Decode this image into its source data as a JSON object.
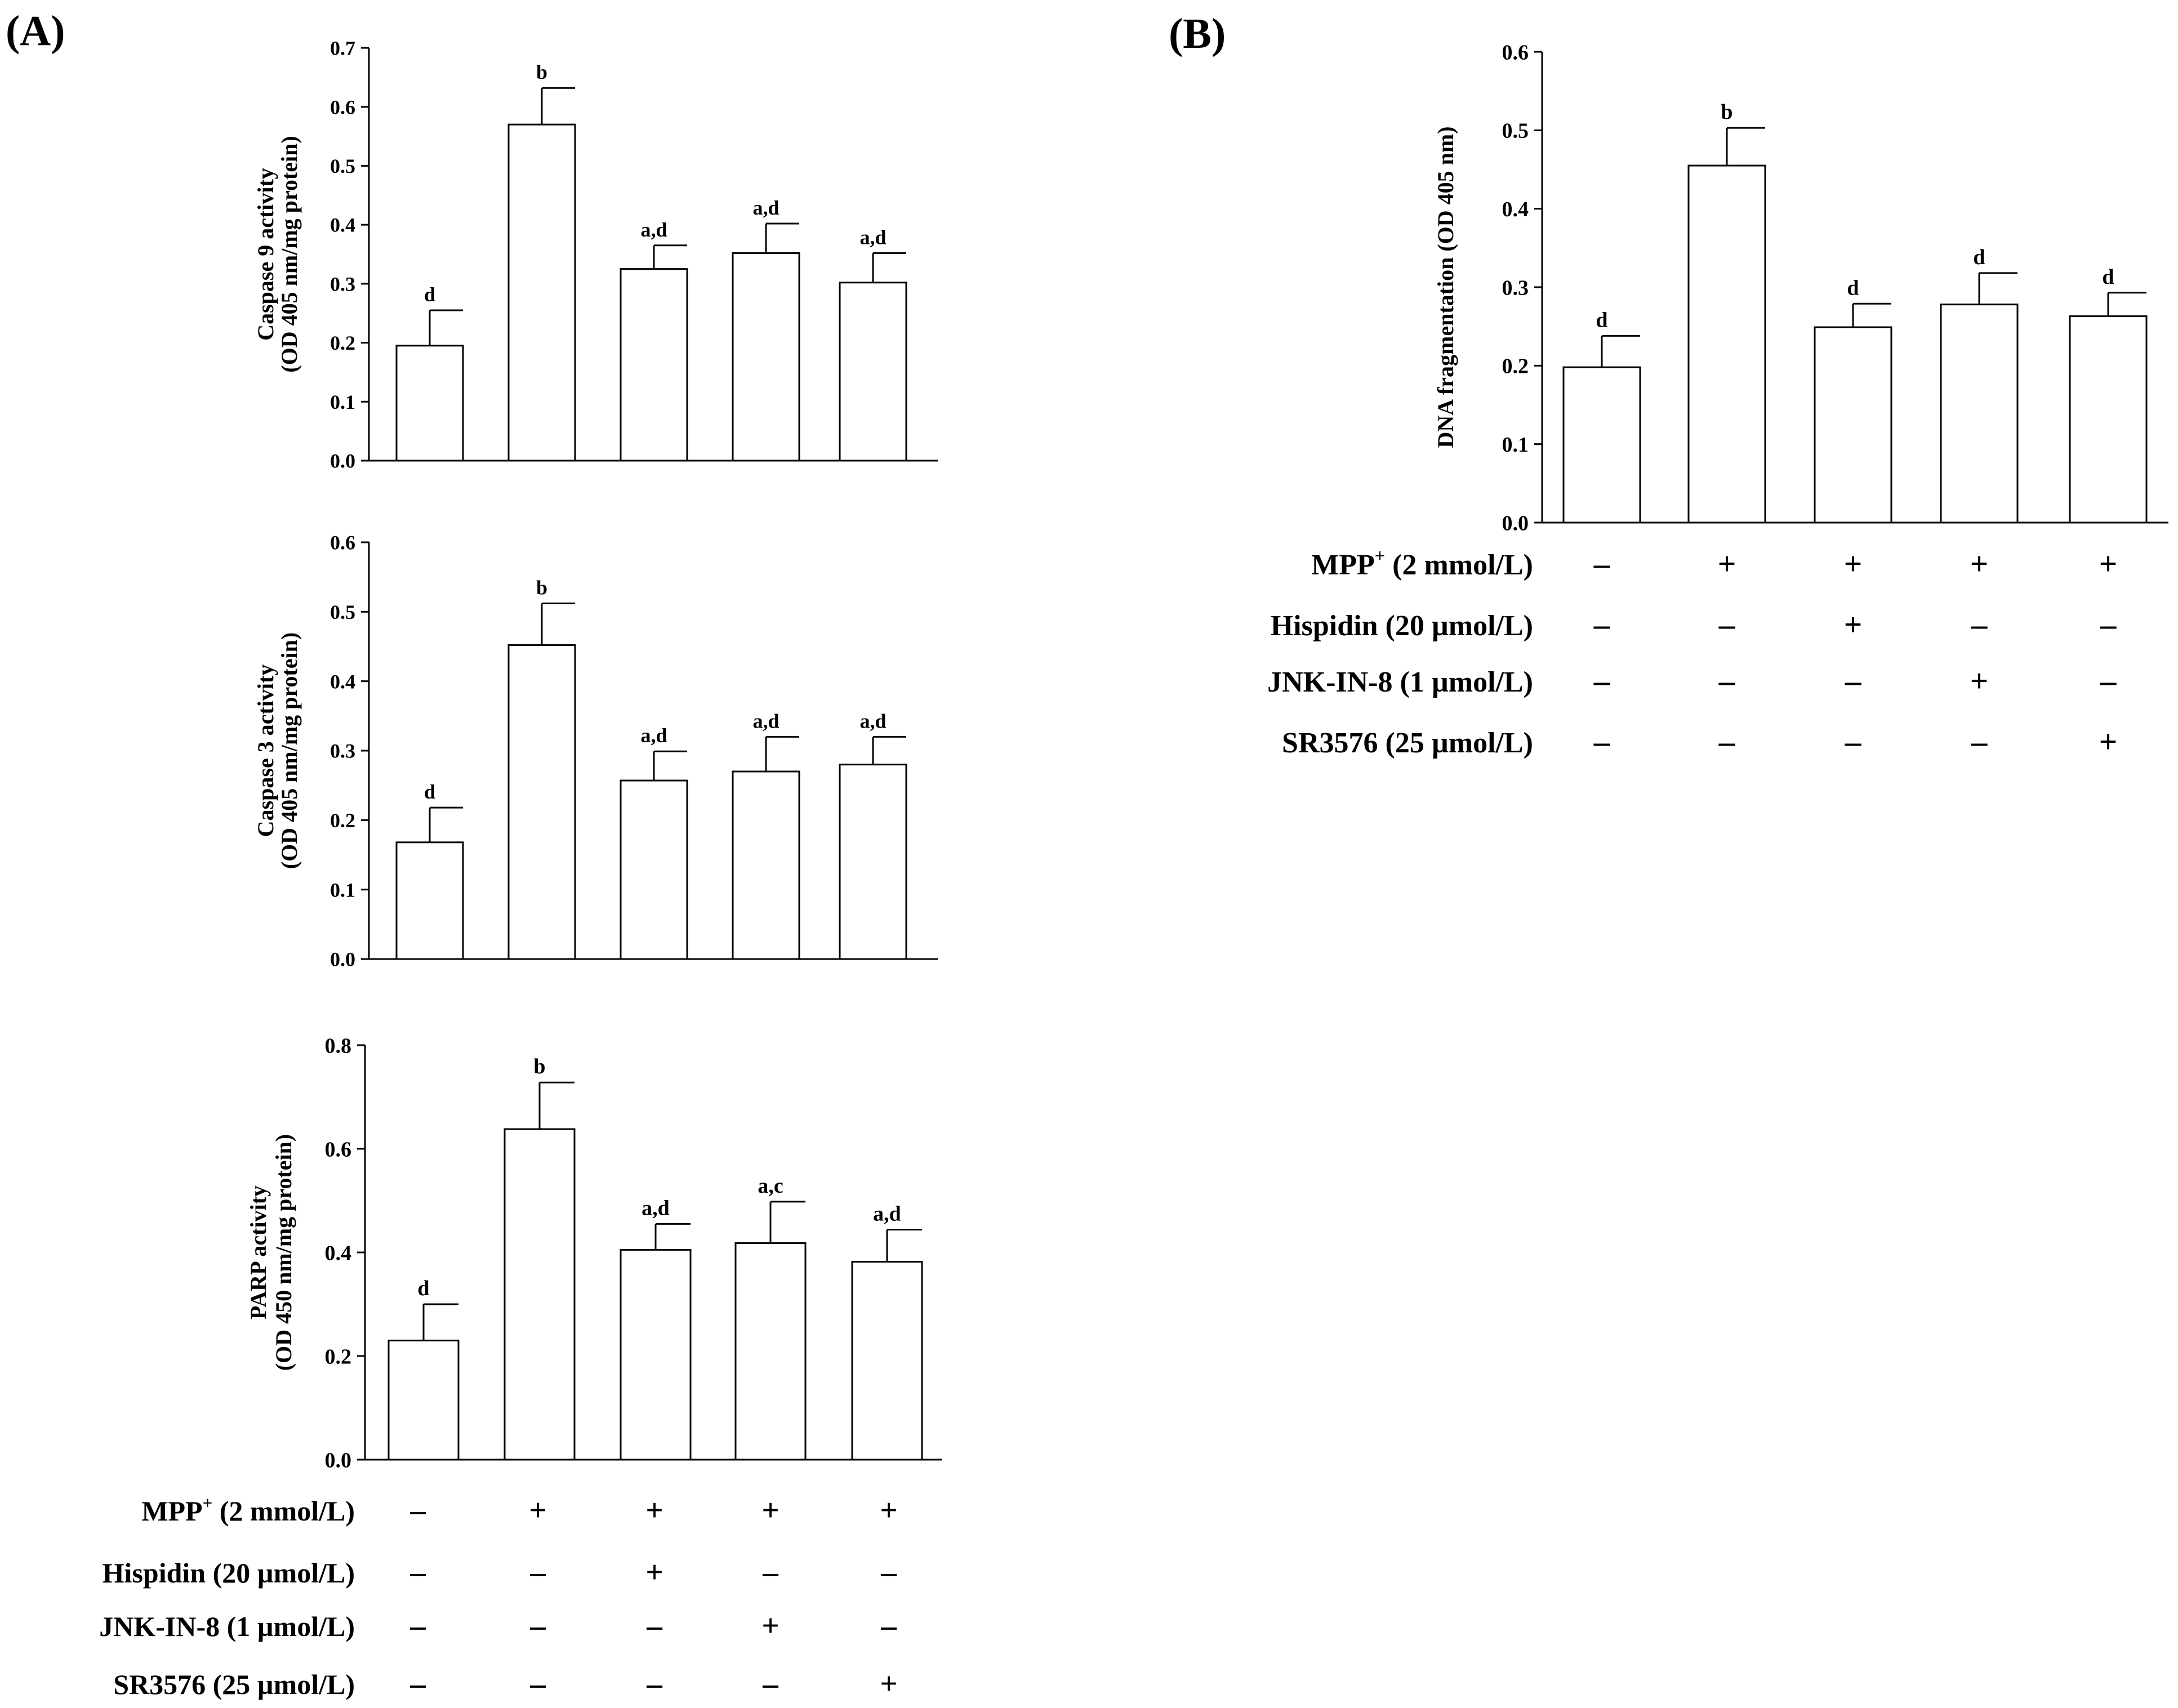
{
  "panels": {
    "a_label": "(A)",
    "b_label": "(B)"
  },
  "treatments": [
    {
      "label_main": "MPP",
      "label_sup": "+",
      "label_rest": " (2 mmol/L)",
      "signs": [
        "–",
        "+",
        "+",
        "+",
        "+"
      ]
    },
    {
      "label_main": "Hispidin (20 µmol/L)",
      "label_sup": "",
      "label_rest": "",
      "signs": [
        "–",
        "–",
        "+",
        "–",
        "–"
      ]
    },
    {
      "label_main": "JNK-IN-8 (1 µmol/L)",
      "label_sup": "",
      "label_rest": "",
      "signs": [
        "–",
        "–",
        "–",
        "+",
        "–"
      ]
    },
    {
      "label_main": "SR3576 (25 µmol/L)",
      "label_sup": "",
      "label_rest": "",
      "signs": [
        "–",
        "–",
        "–",
        "–",
        "+"
      ]
    }
  ],
  "chart_data": [
    {
      "id": "caspase9",
      "panel": "A",
      "type": "bar",
      "title": "",
      "xlabel": "",
      "ylabel": [
        "Caspase 9 activity",
        "(OD 405 nm/mg protein)"
      ],
      "ylim": [
        0,
        0.7
      ],
      "yticks": [
        0.0,
        0.1,
        0.2,
        0.3,
        0.4,
        0.5,
        0.6,
        0.7
      ],
      "ytick_labels": [
        "0.0",
        "0.1",
        "0.2",
        "0.3",
        "0.4",
        "0.5",
        "0.6",
        "0.7"
      ],
      "grid": false,
      "values": [
        0.195,
        0.57,
        0.325,
        0.352,
        0.302
      ],
      "errors": [
        0.06,
        0.062,
        0.04,
        0.05,
        0.05
      ],
      "annotations": [
        "d",
        "b",
        "a,d",
        "a,d",
        "a,d"
      ]
    },
    {
      "id": "caspase3",
      "panel": "A",
      "type": "bar",
      "title": "",
      "xlabel": "",
      "ylabel": [
        "Caspase 3 activity",
        "(OD 405 nm/mg protein)"
      ],
      "ylim": [
        0,
        0.6
      ],
      "yticks": [
        0.0,
        0.1,
        0.2,
        0.3,
        0.4,
        0.5,
        0.6
      ],
      "ytick_labels": [
        "0.0",
        "0.1",
        "0.2",
        "0.3",
        "0.4",
        "0.5",
        "0.6"
      ],
      "grid": false,
      "values": [
        0.168,
        0.452,
        0.257,
        0.27,
        0.28
      ],
      "errors": [
        0.05,
        0.06,
        0.042,
        0.05,
        0.04
      ],
      "annotations": [
        "d",
        "b",
        "a,d",
        "a,d",
        "a,d"
      ]
    },
    {
      "id": "parp",
      "panel": "A",
      "type": "bar",
      "title": "",
      "xlabel": "",
      "ylabel": [
        "PARP activity",
        "(OD 450 nm/mg protein)"
      ],
      "ylim": [
        0,
        0.8
      ],
      "yticks": [
        0.0,
        0.2,
        0.4,
        0.6,
        0.8
      ],
      "ytick_labels": [
        "0.0",
        "0.2",
        "0.4",
        "0.6",
        "0.8"
      ],
      "grid": false,
      "values": [
        0.23,
        0.638,
        0.405,
        0.418,
        0.382
      ],
      "errors": [
        0.07,
        0.09,
        0.05,
        0.08,
        0.062
      ],
      "annotations": [
        "d",
        "b",
        "a,d",
        "a,c",
        "a,d"
      ]
    },
    {
      "id": "dna_fragmentation",
      "panel": "B",
      "type": "bar",
      "title": "",
      "xlabel": "",
      "ylabel": [
        "DNA fragmentation (OD 405 nm)"
      ],
      "ylim": [
        0,
        0.6
      ],
      "yticks": [
        0.0,
        0.1,
        0.2,
        0.3,
        0.4,
        0.5,
        0.6
      ],
      "ytick_labels": [
        "0.0",
        "0.1",
        "0.2",
        "0.3",
        "0.4",
        "0.5",
        "0.6"
      ],
      "grid": false,
      "values": [
        0.198,
        0.455,
        0.249,
        0.278,
        0.263
      ],
      "errors": [
        0.04,
        0.048,
        0.03,
        0.04,
        0.03
      ],
      "annotations": [
        "d",
        "b",
        "d",
        "d",
        "d"
      ]
    }
  ]
}
